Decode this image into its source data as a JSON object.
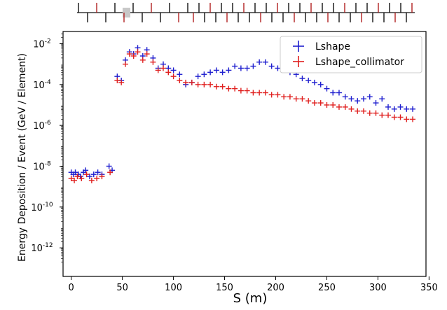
{
  "chart_data": {
    "type": "scatter",
    "title": "",
    "xlabel": "S (m)",
    "ylabel": "Energy Deposition / Event (GeV / Element)",
    "xlim": [
      -8,
      347
    ],
    "ylim_log10": [
      -13.4,
      -1.4
    ],
    "y_scale": "log",
    "x_ticks": [
      0,
      50,
      100,
      150,
      200,
      250,
      300,
      350
    ],
    "x_tick_labels": [
      "0",
      "50",
      "100",
      "150",
      "200",
      "250",
      "300",
      "350"
    ],
    "y_ticks_log10": [
      -12,
      -10,
      -8,
      -6,
      -4,
      -2
    ],
    "y_tick_labels": [
      "10-12",
      "10-10",
      "10-8",
      "10-6",
      "10-4",
      "10-2"
    ],
    "legend_position": "top-right",
    "grid": false,
    "colors": {
      "Lshape": "#1f1fcf",
      "Lshape_collimator": "#e0201f",
      "lattice_line": "#111111",
      "lattice_magnet": "#b02020",
      "lattice_block": "#c8c8c8"
    },
    "series": [
      {
        "name": "Lshape",
        "points": [
          [
            0,
            -8.3
          ],
          [
            2,
            -8.4
          ],
          [
            4,
            -8.3
          ],
          [
            7,
            -8.4
          ],
          [
            9,
            -8.5
          ],
          [
            12,
            -8.3
          ],
          [
            14,
            -8.2
          ],
          [
            18,
            -8.5
          ],
          [
            22,
            -8.4
          ],
          [
            26,
            -8.3
          ],
          [
            30,
            -8.4
          ],
          [
            37,
            -8.0
          ],
          [
            40,
            -8.2
          ],
          [
            45,
            -3.6
          ],
          [
            49,
            -3.8
          ],
          [
            53,
            -2.8
          ],
          [
            57,
            -2.4
          ],
          [
            61,
            -2.5
          ],
          [
            65,
            -2.2
          ],
          [
            70,
            -2.6
          ],
          [
            74,
            -2.3
          ],
          [
            80,
            -2.7
          ],
          [
            85,
            -3.2
          ],
          [
            90,
            -3.0
          ],
          [
            95,
            -3.2
          ],
          [
            100,
            -3.3
          ],
          [
            106,
            -3.5
          ],
          [
            112,
            -4.0
          ],
          [
            118,
            -3.9
          ],
          [
            124,
            -3.6
          ],
          [
            130,
            -3.5
          ],
          [
            136,
            -3.4
          ],
          [
            142,
            -3.3
          ],
          [
            148,
            -3.4
          ],
          [
            154,
            -3.3
          ],
          [
            160,
            -3.1
          ],
          [
            166,
            -3.2
          ],
          [
            172,
            -3.2
          ],
          [
            178,
            -3.1
          ],
          [
            184,
            -2.9
          ],
          [
            190,
            -2.9
          ],
          [
            196,
            -3.1
          ],
          [
            202,
            -3.2
          ],
          [
            208,
            -3.3
          ],
          [
            214,
            -3.4
          ],
          [
            220,
            -3.5
          ],
          [
            226,
            -3.7
          ],
          [
            232,
            -3.8
          ],
          [
            238,
            -3.9
          ],
          [
            244,
            -4.0
          ],
          [
            250,
            -4.2
          ],
          [
            256,
            -4.4
          ],
          [
            262,
            -4.4
          ],
          [
            268,
            -4.6
          ],
          [
            274,
            -4.7
          ],
          [
            280,
            -4.8
          ],
          [
            286,
            -4.7
          ],
          [
            292,
            -4.6
          ],
          [
            298,
            -4.9
          ],
          [
            304,
            -4.7
          ],
          [
            310,
            -5.1
          ],
          [
            316,
            -5.2
          ],
          [
            322,
            -5.1
          ],
          [
            328,
            -5.2
          ],
          [
            334,
            -5.2
          ]
        ]
      },
      {
        "name": "Lshape_collimator",
        "points": [
          [
            0,
            -8.6
          ],
          [
            3,
            -8.7
          ],
          [
            6,
            -8.5
          ],
          [
            10,
            -8.6
          ],
          [
            15,
            -8.4
          ],
          [
            20,
            -8.7
          ],
          [
            25,
            -8.6
          ],
          [
            30,
            -8.5
          ],
          [
            38,
            -8.3
          ],
          [
            45,
            -3.8
          ],
          [
            49,
            -3.9
          ],
          [
            53,
            -3.0
          ],
          [
            57,
            -2.5
          ],
          [
            61,
            -2.6
          ],
          [
            65,
            -2.4
          ],
          [
            70,
            -2.8
          ],
          [
            74,
            -2.5
          ],
          [
            80,
            -2.9
          ],
          [
            85,
            -3.3
          ],
          [
            90,
            -3.2
          ],
          [
            95,
            -3.4
          ],
          [
            100,
            -3.6
          ],
          [
            106,
            -3.8
          ],
          [
            112,
            -3.9
          ],
          [
            118,
            -3.9
          ],
          [
            124,
            -4.0
          ],
          [
            130,
            -4.0
          ],
          [
            136,
            -4.0
          ],
          [
            142,
            -4.1
          ],
          [
            148,
            -4.1
          ],
          [
            154,
            -4.2
          ],
          [
            160,
            -4.2
          ],
          [
            166,
            -4.3
          ],
          [
            172,
            -4.3
          ],
          [
            178,
            -4.4
          ],
          [
            184,
            -4.4
          ],
          [
            190,
            -4.4
          ],
          [
            196,
            -4.5
          ],
          [
            202,
            -4.5
          ],
          [
            208,
            -4.6
          ],
          [
            214,
            -4.6
          ],
          [
            220,
            -4.7
          ],
          [
            226,
            -4.7
          ],
          [
            232,
            -4.8
          ],
          [
            238,
            -4.9
          ],
          [
            244,
            -4.9
          ],
          [
            250,
            -5.0
          ],
          [
            256,
            -5.0
          ],
          [
            262,
            -5.1
          ],
          [
            268,
            -5.1
          ],
          [
            274,
            -5.2
          ],
          [
            280,
            -5.3
          ],
          [
            286,
            -5.3
          ],
          [
            292,
            -5.4
          ],
          [
            298,
            -5.4
          ],
          [
            304,
            -5.5
          ],
          [
            310,
            -5.5
          ],
          [
            316,
            -5.6
          ],
          [
            322,
            -5.6
          ],
          [
            328,
            -5.7
          ],
          [
            334,
            -5.7
          ]
        ]
      }
    ]
  }
}
